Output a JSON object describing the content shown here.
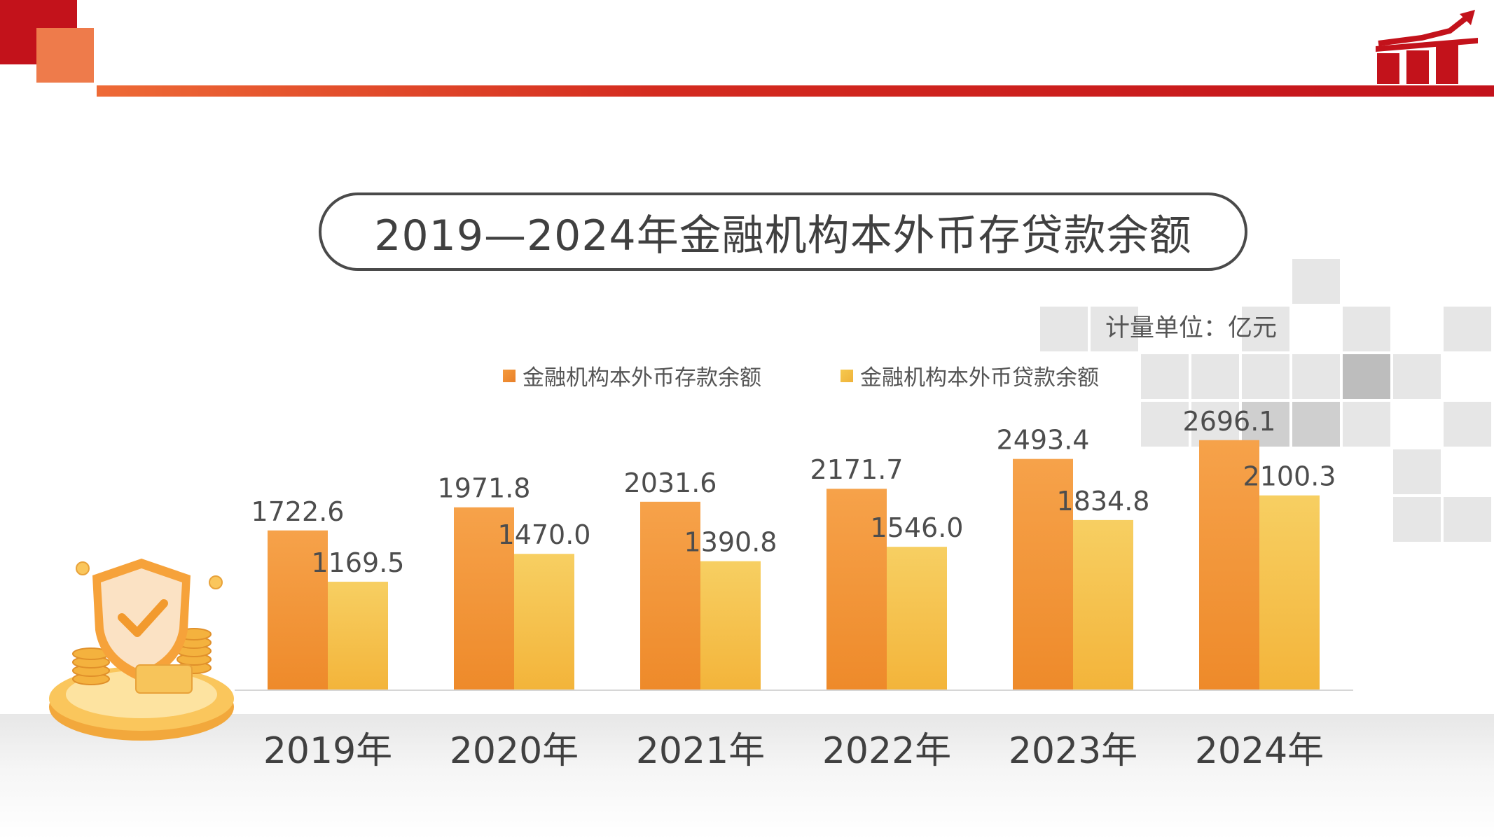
{
  "title": "2019—2024年金融机构本外币存贷款余额",
  "unit": "计量单位：亿元",
  "colors": {
    "deposit": "#f59a3c",
    "loan": "#f6c94e",
    "accent_red": "#c3121b",
    "accent_orange": "#ee7b4b"
  },
  "icons": {
    "logo": "rising-bar-chart-arrow-icon",
    "illustration": "shield-check-coins-icon"
  },
  "chart_data": {
    "type": "bar",
    "categories": [
      "2019年",
      "2020年",
      "2021年",
      "2022年",
      "2023年",
      "2024年"
    ],
    "series": [
      {
        "name": "金融机构本外币存款余额",
        "values": [
          1722.6,
          1971.8,
          2031.6,
          2171.7,
          2493.4,
          2696.1
        ]
      },
      {
        "name": "金融机构本外币贷款余额",
        "values": [
          1169.5,
          1470.0,
          1390.8,
          1546.0,
          1834.8,
          2100.3
        ]
      }
    ],
    "value_labels": [
      [
        "1722.6",
        "1971.8",
        "2031.6",
        "2171.7",
        "2493.4",
        "2696.1"
      ],
      [
        "1169.5",
        "1470.0",
        "1390.8",
        "1546.0",
        "1834.8",
        "2100.3"
      ]
    ],
    "ylim": [
      0,
      3000
    ],
    "grid": false,
    "legend": "top"
  }
}
